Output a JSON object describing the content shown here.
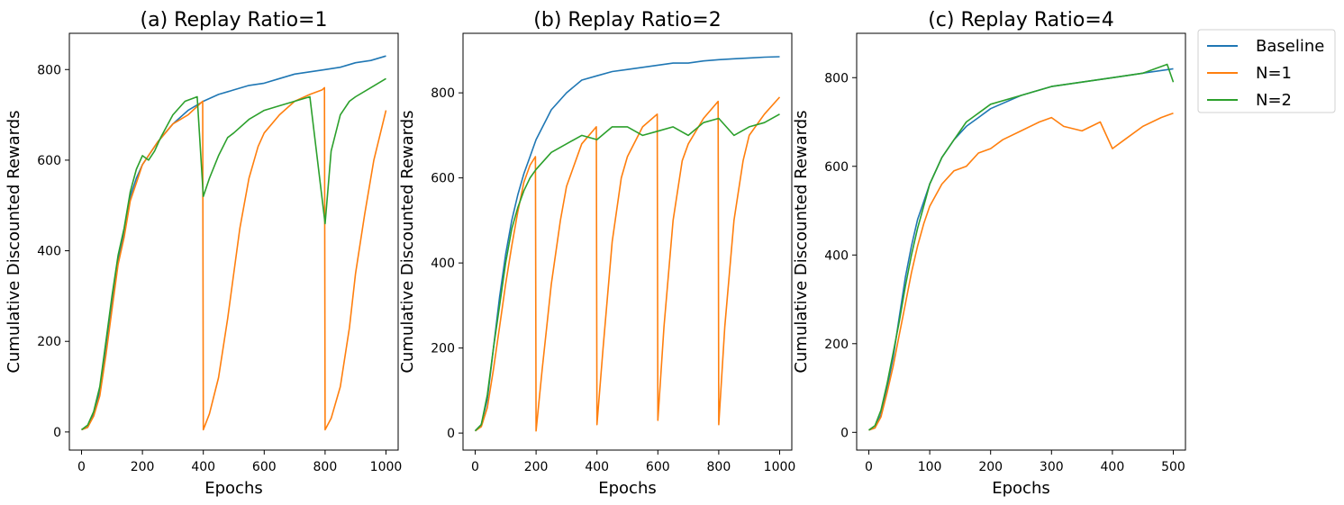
{
  "legend": {
    "placement": "outside-top-right",
    "entries": [
      {
        "name": "Baseline",
        "color": "#1f77b4"
      },
      {
        "name": "N=1",
        "color": "#ff7f0e"
      },
      {
        "name": "N=2",
        "color": "#2ca02c"
      }
    ]
  },
  "chart_data": [
    {
      "type": "line",
      "title": "(a) Replay Ratio=1",
      "xlabel": "Epochs",
      "ylabel": "Cumulative Discounted Rewards",
      "xlim": [
        -40,
        1040
      ],
      "ylim": [
        -40,
        880
      ],
      "xticks": [
        0,
        200,
        400,
        600,
        800,
        1000
      ],
      "yticks": [
        0,
        200,
        400,
        600,
        800
      ],
      "grid": false,
      "series": [
        {
          "name": "Baseline",
          "color": "#1f77b4",
          "x": [
            0,
            20,
            40,
            60,
            80,
            100,
            120,
            140,
            160,
            180,
            200,
            250,
            300,
            350,
            400,
            450,
            500,
            550,
            600,
            650,
            700,
            750,
            800,
            850,
            900,
            950,
            1000
          ],
          "y": [
            5,
            10,
            40,
            90,
            180,
            280,
            380,
            440,
            520,
            560,
            590,
            640,
            680,
            710,
            730,
            745,
            755,
            765,
            770,
            780,
            790,
            795,
            800,
            805,
            815,
            820,
            830
          ]
        },
        {
          "name": "N=1",
          "color": "#ff7f0e",
          "x": [
            0,
            20,
            40,
            60,
            80,
            100,
            120,
            140,
            160,
            180,
            200,
            250,
            300,
            350,
            398,
            400,
            420,
            450,
            480,
            500,
            520,
            550,
            580,
            600,
            650,
            700,
            750,
            790,
            798,
            800,
            820,
            850,
            880,
            900,
            930,
            960,
            1000
          ],
          "y": [
            5,
            10,
            35,
            80,
            170,
            270,
            370,
            430,
            510,
            550,
            590,
            640,
            680,
            700,
            730,
            5,
            40,
            120,
            250,
            350,
            450,
            560,
            630,
            660,
            700,
            730,
            745,
            755,
            760,
            5,
            30,
            100,
            230,
            350,
            480,
            600,
            710
          ]
        },
        {
          "name": "N=2",
          "color": "#2ca02c",
          "x": [
            0,
            20,
            40,
            60,
            80,
            100,
            120,
            140,
            160,
            180,
            200,
            220,
            240,
            260,
            300,
            340,
            380,
            400,
            420,
            450,
            480,
            500,
            550,
            600,
            650,
            700,
            750,
            800,
            820,
            850,
            880,
            900,
            950,
            1000
          ],
          "y": [
            5,
            15,
            45,
            100,
            200,
            300,
            390,
            450,
            530,
            580,
            610,
            600,
            620,
            650,
            700,
            730,
            740,
            520,
            560,
            610,
            650,
            660,
            690,
            710,
            720,
            730,
            740,
            460,
            620,
            700,
            730,
            740,
            760,
            780
          ]
        }
      ]
    },
    {
      "type": "line",
      "title": "(b) Replay Ratio=2",
      "xlabel": "Epochs",
      "ylabel": "Cumulative Discounted Rewards",
      "xlim": [
        -40,
        1040
      ],
      "ylim": [
        -40,
        940
      ],
      "xticks": [
        0,
        200,
        400,
        600,
        800,
        1000
      ],
      "yticks": [
        0,
        200,
        400,
        600,
        800
      ],
      "grid": false,
      "series": [
        {
          "name": "Baseline",
          "color": "#1f77b4",
          "x": [
            0,
            20,
            40,
            60,
            80,
            100,
            120,
            140,
            160,
            180,
            200,
            250,
            300,
            350,
            400,
            450,
            500,
            550,
            600,
            650,
            700,
            750,
            800,
            850,
            900,
            950,
            1000
          ],
          "y": [
            5,
            20,
            80,
            200,
            320,
            420,
            500,
            560,
            610,
            650,
            690,
            760,
            800,
            830,
            840,
            850,
            855,
            860,
            865,
            870,
            870,
            875,
            878,
            880,
            882,
            884,
            885
          ]
        },
        {
          "name": "N=1",
          "color": "#ff7f0e",
          "x": [
            0,
            20,
            40,
            60,
            80,
            100,
            120,
            140,
            160,
            180,
            198,
            200,
            220,
            250,
            280,
            300,
            350,
            398,
            400,
            420,
            450,
            480,
            500,
            550,
            598,
            600,
            620,
            650,
            680,
            700,
            750,
            798,
            800,
            820,
            850,
            880,
            900,
            950,
            1000
          ],
          "y": [
            5,
            15,
            60,
            150,
            250,
            350,
            440,
            520,
            590,
            630,
            650,
            5,
            150,
            350,
            500,
            580,
            680,
            720,
            20,
            200,
            450,
            600,
            650,
            720,
            750,
            30,
            250,
            500,
            640,
            680,
            740,
            780,
            20,
            250,
            500,
            640,
            700,
            750,
            790
          ]
        },
        {
          "name": "N=2",
          "color": "#2ca02c",
          "x": [
            0,
            20,
            40,
            60,
            80,
            100,
            120,
            140,
            160,
            180,
            200,
            250,
            300,
            350,
            400,
            450,
            500,
            550,
            600,
            650,
            700,
            750,
            800,
            850,
            900,
            950,
            1000
          ],
          "y": [
            5,
            20,
            90,
            200,
            300,
            400,
            480,
            530,
            570,
            600,
            620,
            660,
            680,
            700,
            690,
            720,
            720,
            700,
            710,
            720,
            700,
            730,
            740,
            700,
            720,
            730,
            750
          ]
        }
      ]
    },
    {
      "type": "line",
      "title": "(c) Replay Ratio=4",
      "xlabel": "Epochs",
      "ylabel": "Cumulative Discounted Rewards",
      "xlim": [
        -20,
        520
      ],
      "ylim": [
        -40,
        900
      ],
      "xticks": [
        0,
        100,
        200,
        300,
        400,
        500
      ],
      "yticks": [
        0,
        200,
        400,
        600,
        800
      ],
      "grid": false,
      "series": [
        {
          "name": "Baseline",
          "color": "#1f77b4",
          "x": [
            0,
            10,
            20,
            30,
            40,
            50,
            60,
            70,
            80,
            90,
            100,
            120,
            140,
            160,
            170,
            180,
            200,
            250,
            300,
            350,
            400,
            450,
            500
          ],
          "y": [
            5,
            10,
            40,
            100,
            170,
            260,
            350,
            420,
            480,
            520,
            560,
            620,
            660,
            690,
            700,
            710,
            730,
            760,
            780,
            790,
            800,
            810,
            820
          ]
        },
        {
          "name": "N=1",
          "color": "#ff7f0e",
          "x": [
            0,
            10,
            20,
            30,
            40,
            50,
            60,
            70,
            80,
            90,
            100,
            120,
            140,
            160,
            180,
            200,
            220,
            250,
            280,
            300,
            320,
            350,
            380,
            400,
            420,
            450,
            480,
            500
          ],
          "y": [
            5,
            10,
            35,
            90,
            150,
            220,
            290,
            360,
            420,
            470,
            510,
            560,
            590,
            600,
            630,
            640,
            660,
            680,
            700,
            710,
            690,
            680,
            700,
            640,
            660,
            690,
            710,
            720
          ]
        },
        {
          "name": "N=2",
          "color": "#2ca02c",
          "x": [
            0,
            10,
            20,
            30,
            40,
            50,
            60,
            70,
            80,
            90,
            100,
            120,
            140,
            160,
            180,
            200,
            250,
            300,
            350,
            400,
            450,
            470,
            490,
            500
          ],
          "y": [
            5,
            15,
            50,
            110,
            180,
            250,
            330,
            400,
            460,
            510,
            560,
            620,
            660,
            700,
            720,
            740,
            760,
            780,
            790,
            800,
            810,
            820,
            830,
            790
          ]
        }
      ]
    }
  ]
}
